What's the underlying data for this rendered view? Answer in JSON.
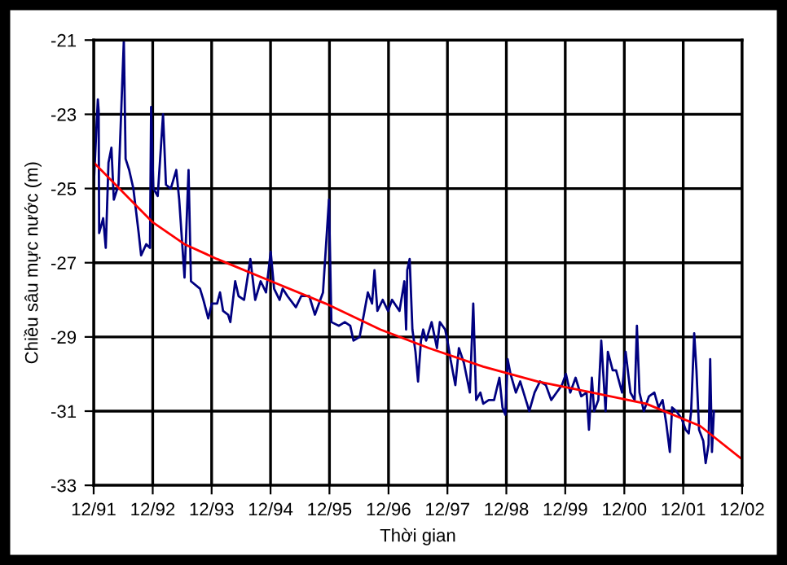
{
  "chart_data": {
    "type": "line",
    "xlabel": "Thời gian",
    "ylabel": "Chiều sâu mực nước (m)",
    "xlim": [
      "1991-12-01",
      "2002-12-01"
    ],
    "xticks": [
      {
        "value": "1991-12-01",
        "label": "12/91"
      },
      {
        "value": "1992-12-01",
        "label": "12/92"
      },
      {
        "value": "1993-12-01",
        "label": "12/93"
      },
      {
        "value": "1994-12-01",
        "label": "12/94"
      },
      {
        "value": "1995-12-01",
        "label": "12/95"
      },
      {
        "value": "1996-12-01",
        "label": "12/96"
      },
      {
        "value": "1997-12-01",
        "label": "12/97"
      },
      {
        "value": "1998-12-01",
        "label": "12/98"
      },
      {
        "value": "1999-12-01",
        "label": "12/99"
      },
      {
        "value": "2000-12-01",
        "label": "12/00"
      },
      {
        "value": "2001-12-01",
        "label": "12/01"
      },
      {
        "value": "2002-12-01",
        "label": "12/02"
      }
    ],
    "ylim": [
      -33,
      -21
    ],
    "yticks": [
      -33,
      -31,
      -29,
      -27,
      -25,
      -23,
      -21
    ],
    "grid": true,
    "series": [
      {
        "color": "#000080",
        "x": [
          "1991-12-02",
          "1991-12-20",
          "1991-12-27",
          "1992-01-01",
          "1992-01-04",
          "1992-01-29",
          "1992-02-14",
          "1992-03-02",
          "1992-03-20",
          "1992-04-04",
          "1992-05-03",
          "1992-06-05",
          "1992-06-16",
          "1992-07-08",
          "1992-08-03",
          "1992-09-05",
          "1992-09-20",
          "1992-10-22",
          "1992-11-14",
          "1992-11-21",
          "1992-12-05",
          "1993-01-01",
          "1993-02-03",
          "1993-02-21",
          "1993-03-23",
          "1993-04-26",
          "1993-05-14",
          "1993-06-16",
          "1993-07-11",
          "1993-07-26",
          "1993-09-20",
          "1993-10-11",
          "1993-11-10",
          "1993-12-02",
          "1994-01-04",
          "1994-01-22",
          "1994-02-10",
          "1994-03-13",
          "1994-03-27",
          "1994-04-26",
          "1994-05-17",
          "1994-06-20",
          "1994-07-08",
          "1994-07-29",
          "1994-08-28",
          "1994-10-01",
          "1994-11-03",
          "1994-12-02",
          "1994-12-23",
          "1995-01-26",
          "1995-02-14",
          "1995-03-16",
          "1995-05-07",
          "1995-06-09",
          "1995-07-29",
          "1995-09-02",
          "1995-10-22",
          "1995-11-28",
          "1995-12-13",
          "1996-01-29",
          "1996-03-05",
          "1996-04-08",
          "1996-04-28",
          "1996-06-05",
          "1996-07-01",
          "1996-07-26",
          "1996-08-21",
          "1996-09-05",
          "1996-09-23",
          "1996-10-26",
          "1996-11-28",
          "1996-12-23",
          "1997-02-07",
          "1997-03-09",
          "1997-03-20",
          "1997-03-27",
          "1997-04-11",
          "1997-04-28",
          "1997-05-17",
          "1997-06-02",
          "1997-06-20",
          "1997-07-04",
          "1997-07-22",
          "1997-08-25",
          "1997-09-27",
          "1997-10-15",
          "1997-11-17",
          "1997-12-05",
          "1997-12-20",
          "1998-01-19",
          "1998-02-10",
          "1998-03-13",
          "1998-04-19",
          "1998-05-10",
          "1998-05-28",
          "1998-06-23",
          "1998-07-11",
          "1998-08-14",
          "1998-09-16",
          "1998-10-19",
          "1998-11-07",
          "1998-11-25",
          "1998-12-09",
          "1998-12-27",
          "1999-01-29",
          "1999-02-25",
          "1999-04-01",
          "1999-04-22",
          "1999-05-25",
          "1999-06-27",
          "1999-08-03",
          "1999-09-05",
          "1999-10-08",
          "1999-11-10",
          "1999-12-05",
          "2000-01-01",
          "2000-02-03",
          "2000-03-09",
          "2000-04-11",
          "2000-04-26",
          "2000-05-14",
          "2000-05-28",
          "2000-06-23",
          "2000-07-11",
          "2000-08-07",
          "2000-08-21",
          "2000-09-20",
          "2000-10-11",
          "2000-11-17",
          "2000-12-09",
          "2001-01-08",
          "2001-02-03",
          "2001-02-17",
          "2001-03-05",
          "2001-04-01",
          "2001-05-03",
          "2001-06-05",
          "2001-07-01",
          "2001-07-26",
          "2001-08-17",
          "2001-09-09",
          "2001-09-23",
          "2001-10-19",
          "2001-11-21",
          "2001-12-16",
          "2002-01-04",
          "2002-01-19",
          "2002-02-07",
          "2002-02-21",
          "2002-03-09",
          "2002-04-04",
          "2002-04-19",
          "2002-05-07",
          "2002-05-17",
          "2002-05-28",
          "2002-06-09"
        ],
        "values": [
          -24.9,
          -23.2,
          -22.6,
          -22.9,
          -26.2,
          -25.8,
          -26.6,
          -24.3,
          -23.9,
          -25.3,
          -24.9,
          -21.0,
          -24.2,
          -24.5,
          -25.0,
          -26.2,
          -26.8,
          -26.5,
          -26.6,
          -22.8,
          -25.0,
          -25.2,
          -23.0,
          -24.9,
          -25.0,
          -24.5,
          -25.3,
          -27.4,
          -24.5,
          -27.5,
          -27.7,
          -28.0,
          -28.5,
          -28.1,
          -28.1,
          -27.8,
          -28.3,
          -28.4,
          -28.6,
          -27.5,
          -27.9,
          -28.0,
          -27.5,
          -26.9,
          -28.0,
          -27.5,
          -27.8,
          -26.7,
          -27.7,
          -28.0,
          -27.7,
          -27.9,
          -28.2,
          -27.9,
          -27.9,
          -28.4,
          -27.8,
          -25.3,
          -28.6,
          -28.7,
          -28.6,
          -28.7,
          -29.1,
          -29.0,
          -28.4,
          -27.8,
          -28.1,
          -27.2,
          -28.3,
          -28.0,
          -28.3,
          -28.0,
          -28.3,
          -27.5,
          -28.8,
          -27.2,
          -26.9,
          -28.8,
          -29.4,
          -30.2,
          -29.1,
          -28.8,
          -29.1,
          -28.6,
          -29.3,
          -28.6,
          -28.8,
          -29.2,
          -29.6,
          -30.3,
          -29.3,
          -29.7,
          -30.5,
          -28.1,
          -30.7,
          -30.5,
          -30.8,
          -30.7,
          -30.7,
          -30.1,
          -30.9,
          -31.1,
          -29.6,
          -30.0,
          -30.5,
          -30.2,
          -30.7,
          -31.0,
          -30.5,
          -30.2,
          -30.3,
          -30.7,
          -30.5,
          -30.3,
          -30.0,
          -30.5,
          -30.1,
          -30.6,
          -30.5,
          -31.5,
          -30.1,
          -31.0,
          -30.7,
          -29.1,
          -31.0,
          -29.4,
          -29.9,
          -29.9,
          -30.5,
          -29.4,
          -30.5,
          -30.7,
          -28.7,
          -30.5,
          -31.0,
          -30.6,
          -30.5,
          -30.9,
          -30.7,
          -31.3,
          -32.1,
          -30.9,
          -31.0,
          -31.2,
          -31.5,
          -31.6,
          -31.0,
          -28.9,
          -29.9,
          -31.5,
          -31.8,
          -32.4,
          -31.9,
          -29.6,
          -32.1,
          -31.0
        ]
      },
      {
        "color": "#ff0000",
        "x": [
          "1991-12-02",
          "1992-11-28",
          "1993-06-16",
          "1994-01-04",
          "1994-12-05",
          "1995-11-07",
          "1996-10-11",
          "1997-08-07",
          "1998-07-11",
          "1999-06-13",
          "2000-05-14",
          "2001-04-15",
          "2002-03-16",
          "2002-12-01"
        ],
        "values": [
          -24.3,
          -25.9,
          -26.5,
          -26.9,
          -27.5,
          -28.1,
          -28.8,
          -29.3,
          -29.8,
          -30.2,
          -30.5,
          -30.8,
          -31.4,
          -32.3
        ]
      }
    ]
  }
}
